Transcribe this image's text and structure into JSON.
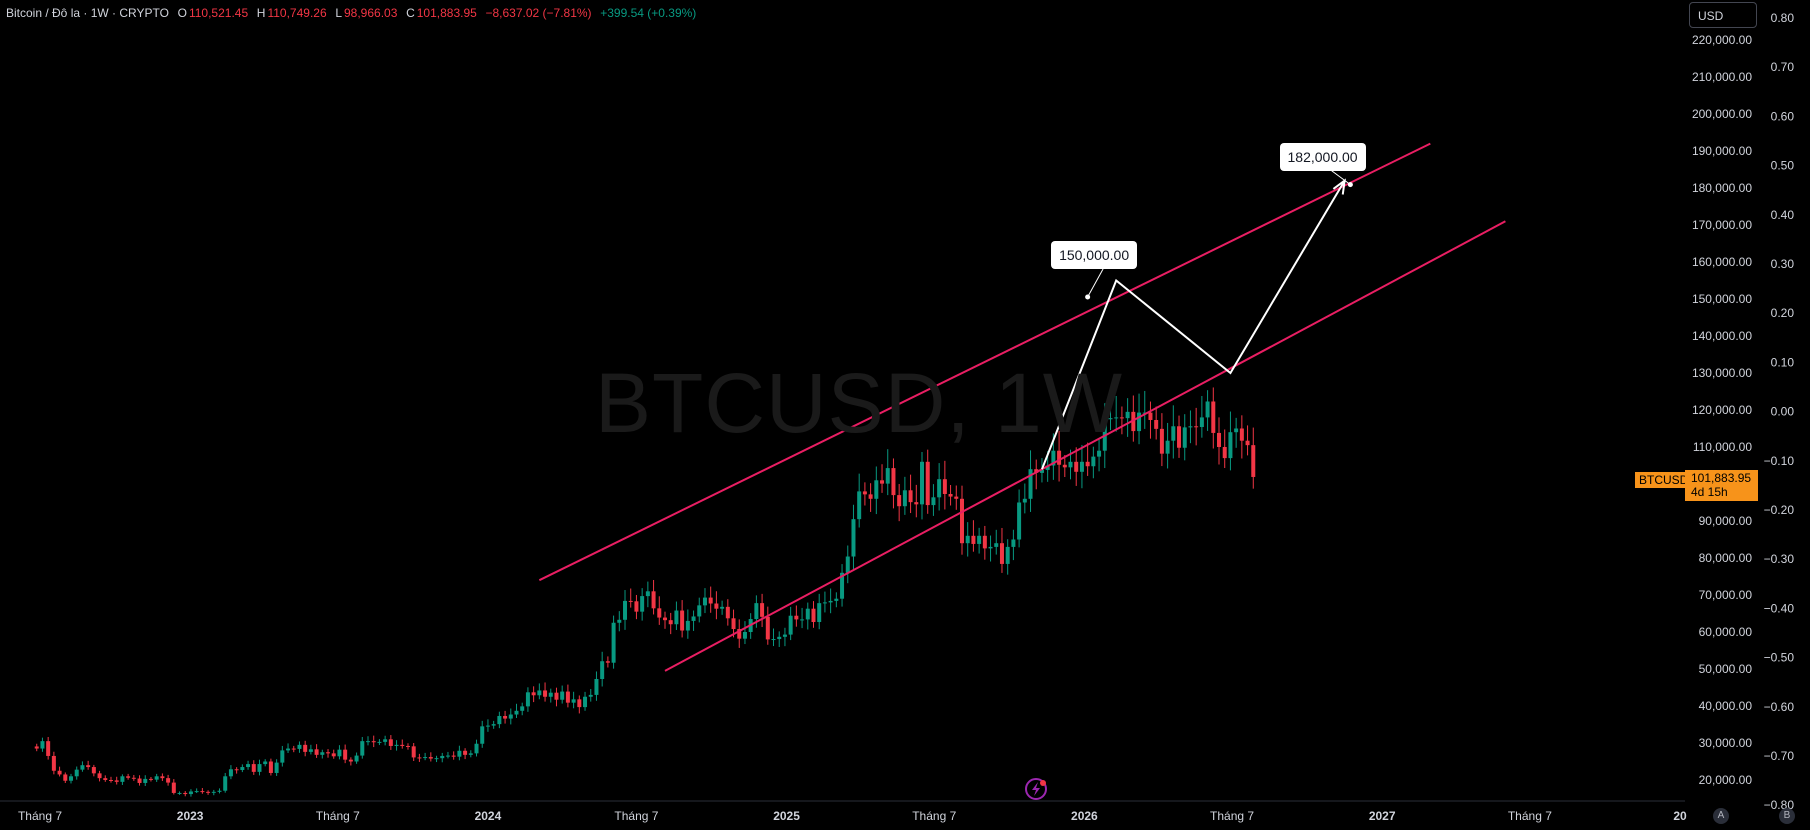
{
  "header": {
    "symbol": "Bitcoin / Đô la · 1W · CRYPTO",
    "open_label": "O",
    "open": "110,521.45",
    "high_label": "H",
    "high": "110,749.26",
    "low_label": "L",
    "low": "98,966.03",
    "close_label": "C",
    "close": "101,883.95",
    "change": "−8,637.02 (−7.81%)",
    "volume_change": "+399.54 (+0.39%)"
  },
  "watermark": "BTCUSD, 1W",
  "currency_button": "USD",
  "current_price": {
    "symbol": "BTCUSD",
    "value": "101,883.95",
    "countdown": "4d 15h"
  },
  "callouts": [
    {
      "text": "150,000.00",
      "target": 150000
    },
    {
      "text": "182,000.00",
      "target": 182000
    }
  ],
  "pane_buttons": {
    "auto": "A",
    "b": "B"
  },
  "chart_data": {
    "type": "candlestick",
    "timeframe": "1W",
    "y_axis_ticks": [
      "220,000.00",
      "210,000.00",
      "200,000.00",
      "190,000.00",
      "180,000.00",
      "170,000.00",
      "160,000.00",
      "150,000.00",
      "140,000.00",
      "130,000.00",
      "120,000.00",
      "110,000.00",
      "90,000.00",
      "80,000.00",
      "70,000.00",
      "60,000.00",
      "50,000.00",
      "40,000.00",
      "30,000.00",
      "20,000.00"
    ],
    "y_axis_values": [
      220000,
      210000,
      200000,
      190000,
      180000,
      170000,
      160000,
      150000,
      140000,
      130000,
      120000,
      110000,
      90000,
      80000,
      70000,
      60000,
      50000,
      40000,
      30000,
      20000
    ],
    "secondary_axis_ticks": [
      "0.80",
      "0.70",
      "0.60",
      "0.50",
      "0.40",
      "0.30",
      "0.20",
      "0.10",
      "0.00",
      "−0.10",
      "−0.20",
      "−0.30",
      "−0.40",
      "−0.50",
      "−0.60",
      "−0.70",
      "−0.80"
    ],
    "x_axis_ticks": [
      "Tháng 7",
      "2023",
      "Tháng 7",
      "2024",
      "Tháng 7",
      "2025",
      "Tháng 7",
      "2026",
      "Tháng 7",
      "2027",
      "Tháng 7",
      "20"
    ],
    "x_axis_dates": [
      "2022-07-01",
      "2023-01-01",
      "2023-07-01",
      "2024-01-01",
      "2024-07-01",
      "2025-01-01",
      "2025-07-01",
      "2026-01-01",
      "2026-07-01",
      "2027-01-01",
      "2027-07-01",
      "2028-01-01"
    ],
    "weekly_closes": [
      28500,
      30500,
      26500,
      22500,
      21500,
      19800,
      21000,
      22800,
      24000,
      23500,
      21800,
      20500,
      20000,
      19900,
      19500,
      21000,
      20600,
      20400,
      19200,
      20300,
      20100,
      21000,
      20500,
      19300,
      16500,
      16500,
      16200,
      16900,
      17000,
      16800,
      16600,
      16800,
      17100,
      21000,
      22900,
      22700,
      23500,
      24300,
      22200,
      24300,
      25000,
      21900,
      24700,
      28000,
      28500,
      28400,
      29500,
      27600,
      28300,
      26800,
      27500,
      27200,
      26400,
      28200,
      25500,
      25000,
      26600,
      30500,
      30500,
      30200,
      30300,
      31000,
      29200,
      29500,
      29200,
      29100,
      26100,
      26000,
      26200,
      25800,
      25900,
      26500,
      26600,
      26300,
      27900,
      26800,
      27200,
      29800,
      34500,
      34700,
      35100,
      37300,
      36600,
      37700,
      38700,
      39900,
      43700,
      42900,
      44200,
      42500,
      43600,
      41700,
      43900,
      40900,
      41800,
      39700,
      42500,
      43000,
      47300,
      52100,
      51700,
      62500,
      63300,
      68400,
      68300,
      65500,
      69700,
      71000,
      66400,
      63900,
      63200,
      62100,
      65800,
      60400,
      63000,
      64200,
      67200,
      69300,
      67700,
      66300,
      66800,
      63700,
      60800,
      58200,
      60000,
      63500,
      67800,
      64100,
      58000,
      58100,
      58700,
      59300,
      64400,
      63400,
      63400,
      66300,
      62700,
      67800,
      68000,
      68400,
      69000,
      76000,
      80400,
      90500,
      98000,
      97200,
      96000,
      101000,
      100100,
      104300,
      97000,
      94000,
      98300,
      95100,
      94500,
      106000,
      94300,
      96400,
      101300,
      97300,
      96600,
      96000,
      84000,
      86000,
      83800,
      86000,
      82600,
      83000,
      84000,
      78400,
      83000,
      85000,
      95000,
      96000,
      104000,
      103000,
      103800,
      105000,
      109000,
      105200,
      104500,
      106000,
      103300,
      106000,
      104800,
      107400,
      109000,
      117500,
      117800,
      118000,
      117800,
      119500,
      114300,
      119300,
      119300,
      117300,
      114900,
      108200,
      111700,
      115600,
      109800,
      115300,
      115600,
      115400,
      118000,
      122300,
      113800,
      110000,
      107000,
      114000,
      115000,
      111700,
      110500,
      101900
    ],
    "channel_upper": {
      "start": {
        "date": "2024-03-04",
        "value": 74000
      },
      "end": {
        "date": "2027-03-01",
        "value": 192000
      }
    },
    "channel_lower": {
      "start": {
        "date": "2024-08-05",
        "value": 49500
      },
      "end": {
        "date": "2027-06-01",
        "value": 171000
      }
    },
    "projection_path": [
      {
        "date": "2025-11-10",
        "value": 104000
      },
      {
        "date": "2026-02-09",
        "value": 155000
      },
      {
        "date": "2026-06-29",
        "value": 130000
      },
      {
        "date": "2026-11-16",
        "value": 182000
      }
    ]
  }
}
